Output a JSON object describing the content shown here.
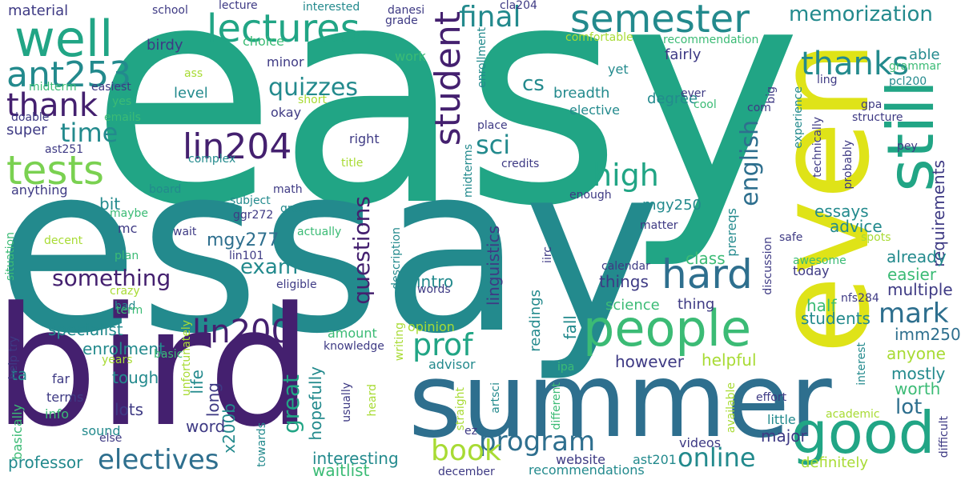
{
  "palette": {
    "indigo": "#44206f",
    "deep": "#3e3a84",
    "blue": "#35608d",
    "slate": "#2e6f8e",
    "teal": "#238a8d",
    "jade": "#21a585",
    "green": "#3bbb75",
    "lime": "#7ad151",
    "chartreuse": "#a8db34",
    "yellow": "#dfe318"
  },
  "words": [
    "easy",
    "essay",
    "bird",
    "summer",
    "even",
    "still",
    "people",
    "good",
    "well",
    "tests",
    "lectures",
    "semester",
    "hard",
    "ant253",
    "thank",
    "thanks",
    "student",
    "lin204",
    "lin200",
    "program",
    "online",
    "book",
    "electives",
    "prof",
    "great",
    "questions",
    "mark",
    "english",
    "sci",
    "high",
    "final",
    "cs",
    "time",
    "quizzes",
    "something",
    "exam",
    "memorization",
    "material",
    "lot",
    "fall",
    "intro",
    "specialist",
    "professor",
    "hopefully",
    "mgy277",
    "mgy250",
    "linguistics",
    "readings",
    "requirements",
    "essays",
    "already",
    "easier",
    "multiple",
    "students",
    "imm250",
    "half",
    "anyone",
    "mostly",
    "worth",
    "definitely",
    "interesting",
    "recommendations",
    "waitlist",
    "december",
    "website",
    "ast201",
    "videos",
    "major",
    "little",
    "academic",
    "difficult",
    "nfs284",
    "today",
    "awesome",
    "advice",
    "class",
    "things",
    "science",
    "thing",
    "however",
    "helpful",
    "long",
    "life",
    "x200b",
    "word",
    "lots",
    "tough",
    "enrolment",
    "ta",
    "basically",
    "terms",
    "info",
    "sound",
    "else",
    "far",
    "years",
    "basic",
    "unfortunately",
    "towards",
    "usually",
    "heard",
    "straight",
    "ez",
    "different",
    "available",
    "effort",
    "interest",
    "ipa",
    "artsci",
    "advisor",
    "knowledge",
    "opinion",
    "amount",
    "writing",
    "words",
    "eligible",
    "crazy",
    "bad",
    "term",
    "plan",
    "lin101",
    "decent",
    "maybe",
    "mc",
    "wait",
    "actually",
    "ggr272",
    "subject",
    "group",
    "board",
    "bit",
    "anything",
    "complex",
    "math",
    "title",
    "credits",
    "enough",
    "calendar",
    "matter",
    "safe",
    "discussion",
    "prereqs",
    "iirc",
    "description",
    "midterms",
    "right",
    "place",
    "okay",
    "elective",
    "degree",
    "fairly",
    "yet",
    "breadth",
    "level",
    "minor",
    "choice",
    "work",
    "grade",
    "cla204",
    "danesi",
    "interested",
    "lecture",
    "school",
    "birdy",
    "enrollment",
    "comfortable",
    "recommendation",
    "able",
    "grammar",
    "ling",
    "big",
    "experience",
    "technically",
    "probably",
    "structure",
    "gpa",
    "pcl200",
    "pey",
    "ever",
    "cool",
    "com",
    "spots",
    "situation",
    "help try",
    "midterm",
    "easiest",
    "yes",
    "emails",
    "doable",
    "ass",
    "short",
    "super",
    "ast251"
  ]
}
